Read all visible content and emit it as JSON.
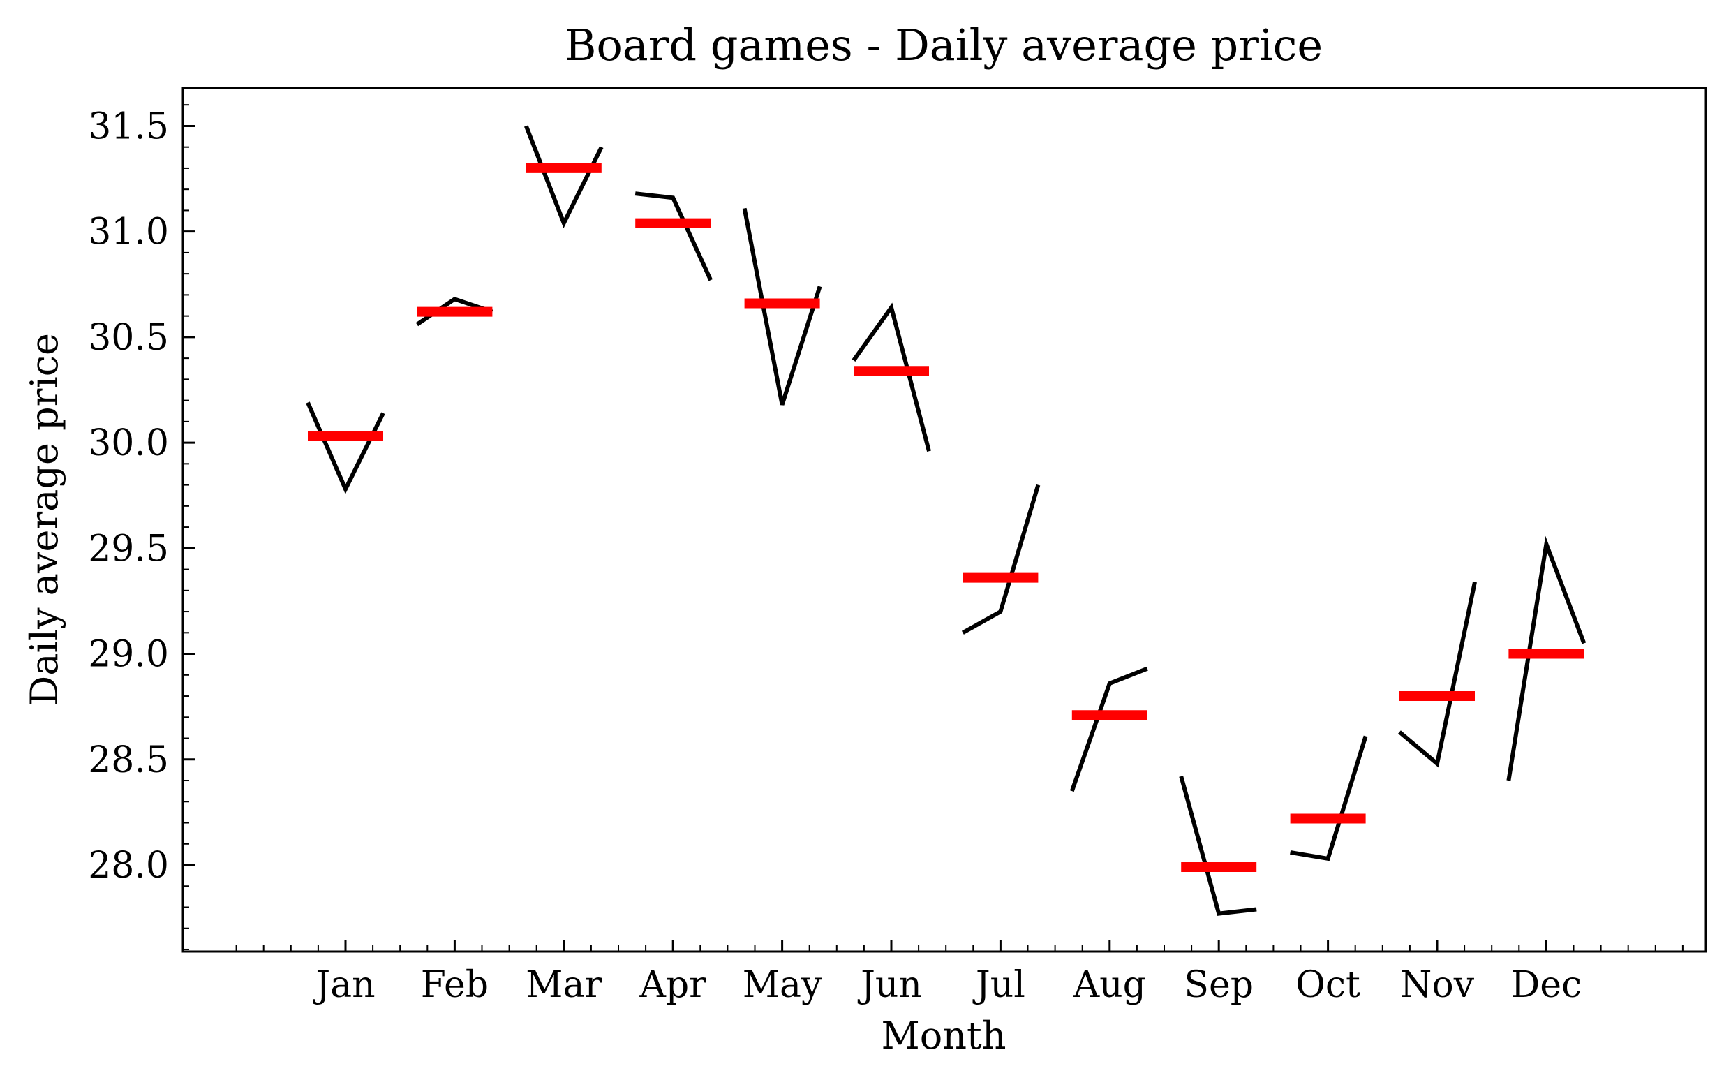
{
  "chart_data": {
    "type": "line",
    "title": "Board games - Daily average price",
    "xlabel": "Month",
    "ylabel": "Daily average price",
    "ylim": [
      27.59,
      31.68
    ],
    "yticks": [
      "28.0",
      "28.5",
      "29.0",
      "29.5",
      "30.0",
      "30.5",
      "31.0",
      "31.5"
    ],
    "grid": false,
    "categories": [
      "Jan",
      "Feb",
      "Mar",
      "Apr",
      "May",
      "Jun",
      "Jul",
      "Aug",
      "Sep",
      "Oct",
      "Nov",
      "Dec"
    ],
    "series": [
      {
        "values": [
          [
            30.19,
            29.78,
            30.14
          ],
          [
            30.56,
            30.68,
            30.62
          ],
          [
            31.5,
            31.04,
            31.4
          ],
          [
            31.18,
            31.16,
            30.77
          ],
          [
            31.11,
            30.18,
            30.74
          ],
          [
            30.39,
            30.64,
            29.96
          ],
          [
            29.1,
            29.2,
            29.8
          ],
          [
            28.35,
            28.86,
            28.93
          ],
          [
            28.42,
            27.77,
            27.79
          ],
          [
            28.06,
            28.03,
            28.61
          ],
          [
            28.63,
            28.48,
            29.34
          ],
          [
            28.4,
            29.52,
            29.05
          ]
        ],
        "color": "#000000"
      },
      {
        "values": [
          30.03,
          30.62,
          31.3,
          31.04,
          30.66,
          30.34,
          29.36,
          28.71,
          27.99,
          28.22,
          28.8,
          29.0
        ],
        "color": "#ff0000"
      }
    ]
  }
}
